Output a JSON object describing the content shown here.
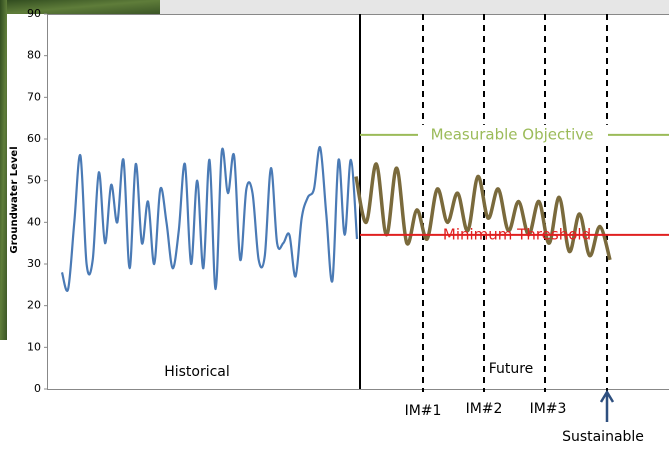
{
  "chart_data": {
    "type": "line",
    "y_label": "Groundwater Level",
    "ylim": [
      0,
      90
    ],
    "yticks": [
      0,
      10,
      20,
      30,
      40,
      50,
      60,
      70,
      80,
      90
    ],
    "series": [
      {
        "name": "Historical",
        "color": "#4a7ab5",
        "values": [
          28,
          24,
          40,
          56,
          30,
          31,
          52,
          35,
          49,
          40,
          55,
          29,
          54,
          35,
          45,
          30,
          48,
          40,
          29,
          38,
          54,
          30,
          50,
          29,
          55,
          24,
          57,
          47,
          56,
          31,
          48,
          47,
          31,
          32,
          53,
          35,
          35,
          37,
          27,
          41,
          46,
          48,
          58,
          42,
          26,
          55,
          37,
          55,
          36
        ]
      },
      {
        "name": "Future",
        "color": "#7a6a3c",
        "values": [
          51,
          40,
          54,
          37,
          53,
          35,
          43,
          36,
          48,
          40,
          47,
          38,
          51,
          41,
          48,
          38,
          45,
          37,
          45,
          35,
          46,
          33,
          42,
          32,
          39,
          31
        ]
      }
    ],
    "thresholds": [
      {
        "label": "Measurable  Objective",
        "value": 61,
        "color": "#9bbb59"
      },
      {
        "label": "Minimum Threshold",
        "value": 37,
        "color": "#e02020"
      }
    ],
    "milestones": [
      "IM#1",
      "IM#2",
      "IM#3"
    ],
    "end_label": "Sustainable"
  }
}
